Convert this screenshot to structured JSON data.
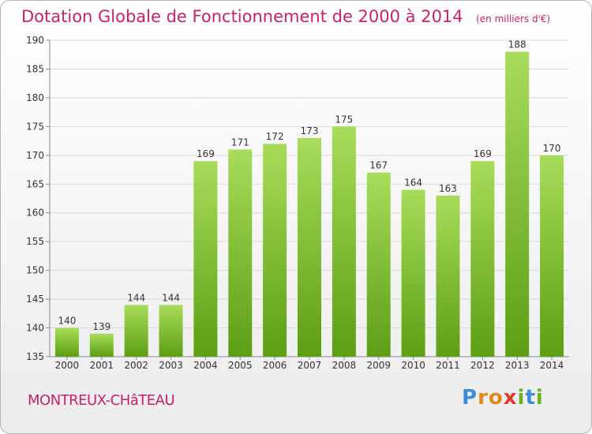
{
  "header": {
    "title": "Dotation Globale de Fonctionnement de 2000 à 2014",
    "unit": "(en milliers d'€)"
  },
  "footer": {
    "commune": "MONTREUX-CHâTEAU",
    "logo_text": "Proxiti",
    "logo_colors": [
      "#3a8fd8",
      "#e0891b",
      "#e0891b",
      "#e03a2a",
      "#6ab023",
      "#3a8fd8",
      "#6ab023"
    ]
  },
  "colors": {
    "bar_light": "#a8dc5a",
    "bar_dark": "#5c9e14",
    "grid": "#d9d9d9",
    "axis_text": "#333333"
  },
  "chart_data": {
    "type": "bar",
    "title": "Dotation Globale de Fonctionnement de 2000 à 2014",
    "subtitle": "(en milliers d'€)",
    "categories": [
      "2000",
      "2001",
      "2002",
      "2003",
      "2004",
      "2005",
      "2006",
      "2007",
      "2008",
      "2009",
      "2010",
      "2011",
      "2012",
      "2013",
      "2014"
    ],
    "values": [
      140,
      139,
      144,
      144,
      169,
      171,
      172,
      173,
      175,
      167,
      164,
      163,
      169,
      188,
      170
    ],
    "ylim": [
      135,
      190
    ],
    "yticks": [
      135,
      140,
      145,
      150,
      155,
      160,
      165,
      170,
      175,
      180,
      185,
      190
    ],
    "grid": true,
    "data_labels": true
  }
}
